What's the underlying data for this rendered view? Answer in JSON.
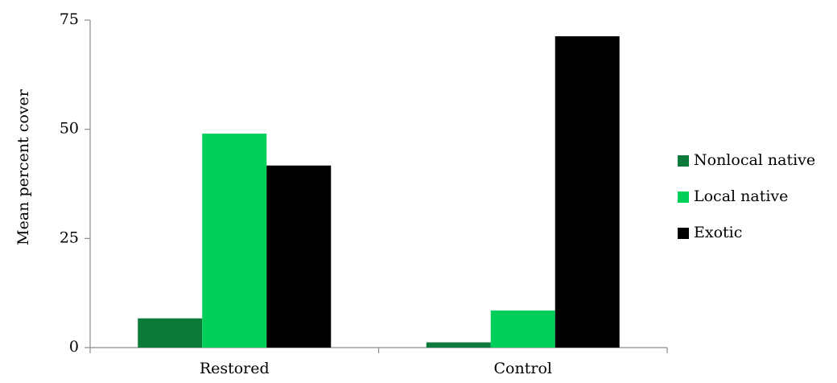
{
  "chart_data": {
    "type": "bar",
    "categories": [
      "Restored",
      "Control"
    ],
    "series": [
      {
        "name": "Nonlocal native",
        "values": [
          6.7,
          1.2
        ],
        "color": "#0b7a3b"
      },
      {
        "name": "Local native",
        "values": [
          49,
          8.5
        ],
        "color": "#00d05a"
      },
      {
        "name": "Exotic",
        "values": [
          41.7,
          71.3
        ],
        "color": "#000000"
      }
    ],
    "title": "",
    "xlabel": "",
    "ylabel": "Mean percent cover",
    "ylim": [
      0,
      75
    ],
    "yticks": [
      0,
      25,
      50,
      75
    ],
    "grid": false,
    "legend_position": "right"
  }
}
